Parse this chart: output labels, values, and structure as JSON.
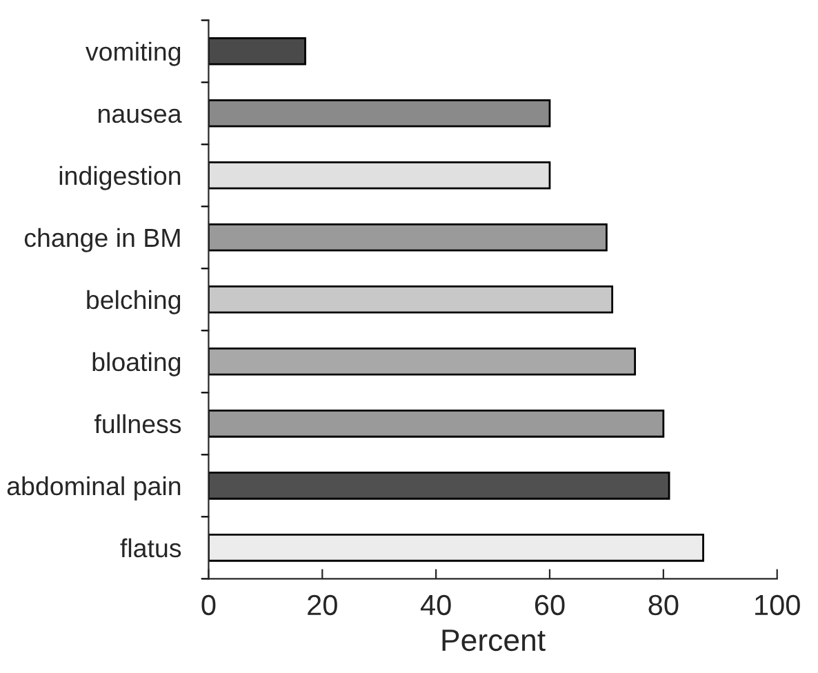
{
  "chart_data": {
    "type": "bar",
    "orientation": "horizontal",
    "xlabel": "Percent",
    "categories": [
      "vomiting",
      "nausea",
      "indigestion",
      "change in BM",
      "belching",
      "bloating",
      "fullness",
      "abdominal pain",
      "flatus"
    ],
    "values": [
      17,
      60,
      60,
      70,
      71,
      75,
      80,
      81,
      87
    ],
    "colors": [
      "#4a4a4a",
      "#8a8a8a",
      "#e0e0e0",
      "#9a9a9a",
      "#c8c8c8",
      "#a8a8a8",
      "#9a9a9a",
      "#505050",
      "#ececec"
    ],
    "xlim": [
      0,
      100
    ],
    "xticks": [
      0,
      20,
      40,
      60,
      80,
      100
    ],
    "grid": false,
    "legend": false
  }
}
